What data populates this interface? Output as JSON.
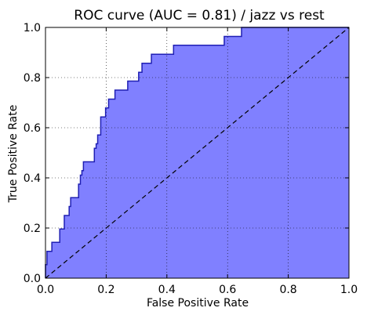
{
  "chart_data": {
    "type": "area",
    "title": "ROC curve (AUC = 0.81) / jazz vs rest",
    "xlabel": "False Positive Rate",
    "ylabel": "True Positive Rate",
    "xlim": [
      0.0,
      1.0
    ],
    "ylim": [
      0.0,
      1.0
    ],
    "xticks": [
      "0.0",
      "0.2",
      "0.4",
      "0.6",
      "0.8",
      "1.0"
    ],
    "yticks": [
      "0.0",
      "0.2",
      "0.4",
      "0.6",
      "0.8",
      "1.0"
    ],
    "grid": true,
    "series": [
      {
        "kind": "roc_curve",
        "x": [
          0.0,
          0.0,
          0.005,
          0.005,
          0.021,
          0.021,
          0.047,
          0.047,
          0.062,
          0.062,
          0.078,
          0.078,
          0.083,
          0.083,
          0.109,
          0.109,
          0.115,
          0.115,
          0.12,
          0.12,
          0.125,
          0.125,
          0.161,
          0.161,
          0.167,
          0.167,
          0.172,
          0.172,
          0.182,
          0.182,
          0.198,
          0.198,
          0.208,
          0.208,
          0.229,
          0.229,
          0.271,
          0.271,
          0.307,
          0.307,
          0.318,
          0.318,
          0.349,
          0.349,
          0.422,
          0.422,
          0.589,
          0.589,
          0.646,
          0.646,
          1.0
        ],
        "y": [
          0.0,
          0.054,
          0.054,
          0.107,
          0.107,
          0.143,
          0.143,
          0.196,
          0.196,
          0.25,
          0.25,
          0.286,
          0.286,
          0.321,
          0.321,
          0.375,
          0.375,
          0.411,
          0.411,
          0.429,
          0.429,
          0.464,
          0.464,
          0.518,
          0.518,
          0.536,
          0.536,
          0.571,
          0.571,
          0.643,
          0.643,
          0.679,
          0.679,
          0.714,
          0.714,
          0.75,
          0.75,
          0.786,
          0.786,
          0.821,
          0.821,
          0.857,
          0.857,
          0.893,
          0.893,
          0.929,
          0.929,
          0.964,
          0.964,
          1.0,
          1.0
        ],
        "color": "#1f1fb4",
        "fill": "#8080ff"
      },
      {
        "kind": "chance_line",
        "x": [
          0.0,
          1.0
        ],
        "y": [
          0.0,
          1.0
        ],
        "color": "#000000",
        "style": "dashed"
      }
    ]
  }
}
